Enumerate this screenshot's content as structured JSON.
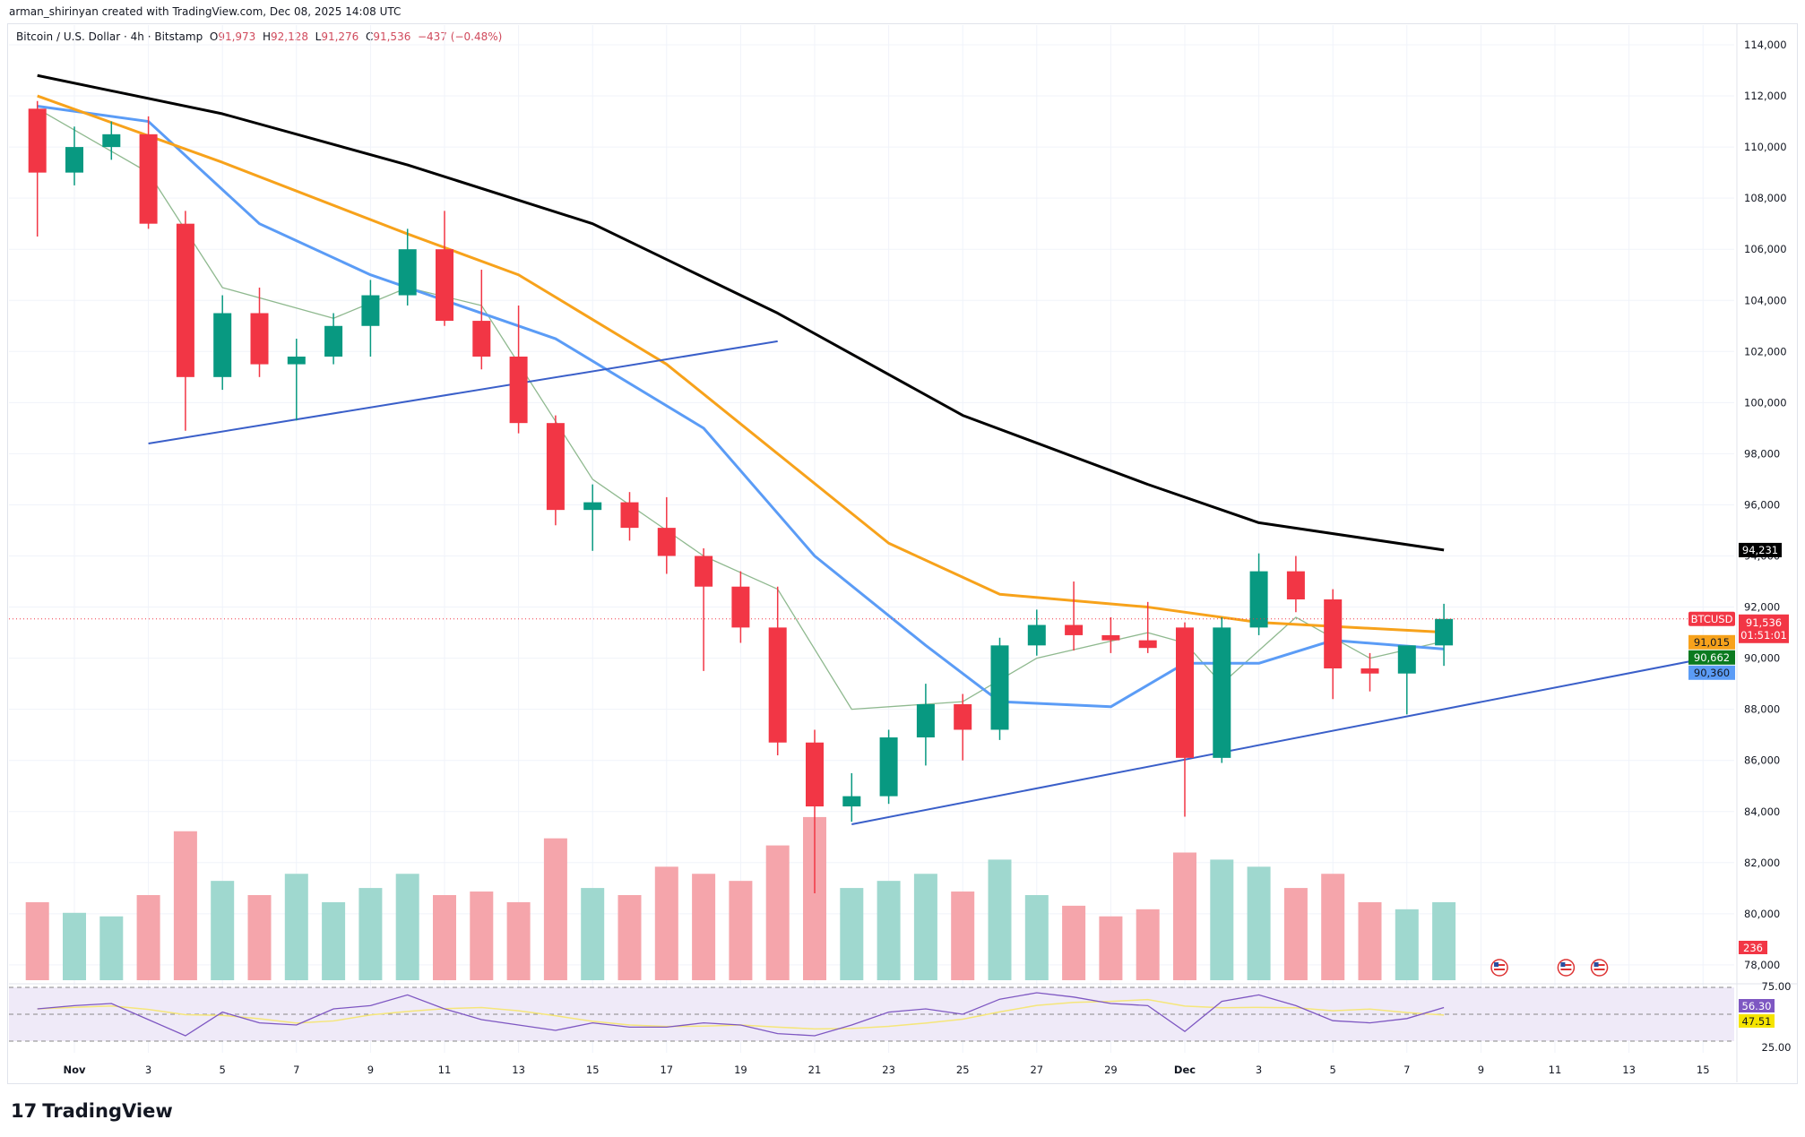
{
  "credit": "arman_shirinyan created with TradingView.com, Dec 08, 2025 14:08 UTC",
  "legend": {
    "title": "Bitcoin / U.S. Dollar · 4h · Bitstamp",
    "o_label": "O",
    "o": "91,973",
    "h_label": "H",
    "h": "92,128",
    "l_label": "L",
    "l": "91,276",
    "c_label": "C",
    "c": "91,536",
    "change": "−437 (−0.48%)"
  },
  "logo": "TradingView",
  "colors": {
    "up": "#089981",
    "down": "#f23645",
    "ma_black": "#000000",
    "ma_orange": "#f7a21b",
    "ma_blue": "#5b9cf6",
    "ma_green": "#8fb98f",
    "trend": "#3a5fc9",
    "rsi": "#7e57c2",
    "rsi_ma": "#f5e67a"
  },
  "chart_data": {
    "type": "candlestick",
    "symbol": "BTCUSD",
    "price_ticks": [
      "114,000",
      "112,000",
      "110,000",
      "108,000",
      "106,000",
      "104,000",
      "102,000",
      "100,000",
      "98,000",
      "96,000",
      "94,000",
      "92,000",
      "90,000",
      "88,000",
      "86,000",
      "84,000",
      "82,000",
      "80,000",
      "78,000"
    ],
    "ylim": [
      78000,
      114000
    ],
    "date_ticks": [
      {
        "d": 1,
        "t": "Nov"
      },
      {
        "d": 3,
        "t": "3"
      },
      {
        "d": 5,
        "t": "5"
      },
      {
        "d": 7,
        "t": "7"
      },
      {
        "d": 9,
        "t": "9"
      },
      {
        "d": 11,
        "t": "11"
      },
      {
        "d": 13,
        "t": "13"
      },
      {
        "d": 15,
        "t": "15"
      },
      {
        "d": 17,
        "t": "17"
      },
      {
        "d": 19,
        "t": "19"
      },
      {
        "d": 21,
        "t": "21"
      },
      {
        "d": 23,
        "t": "23"
      },
      {
        "d": 25,
        "t": "25"
      },
      {
        "d": 27,
        "t": "27"
      },
      {
        "d": 29,
        "t": "29"
      },
      {
        "d": 31,
        "t": "Dec"
      },
      {
        "d": 33,
        "t": "3"
      },
      {
        "d": 35,
        "t": "5"
      },
      {
        "d": 37,
        "t": "7"
      },
      {
        "d": 39,
        "t": "9"
      },
      {
        "d": 41,
        "t": "11"
      },
      {
        "d": 43,
        "t": "13"
      },
      {
        "d": 45,
        "t": "15"
      }
    ],
    "candles_daily_ohlc": [
      [
        0,
        111500,
        111800,
        106500,
        109000
      ],
      [
        1,
        109000,
        110800,
        108500,
        110000
      ],
      [
        2,
        110000,
        111000,
        109500,
        110500
      ],
      [
        3,
        110500,
        111200,
        106800,
        107000
      ],
      [
        4,
        107000,
        107500,
        98900,
        101000
      ],
      [
        5,
        101000,
        104200,
        100500,
        103500
      ],
      [
        6,
        103500,
        104500,
        101000,
        101500
      ],
      [
        7,
        101500,
        102500,
        99300,
        101800
      ],
      [
        8,
        101800,
        103500,
        101500,
        103000
      ],
      [
        9,
        103000,
        104800,
        101800,
        104200
      ],
      [
        10,
        104200,
        106800,
        103800,
        106000
      ],
      [
        11,
        106000,
        107500,
        103000,
        103200
      ],
      [
        12,
        103200,
        105200,
        101300,
        101800
      ],
      [
        13,
        101800,
        103800,
        98800,
        99200
      ],
      [
        14,
        99200,
        99500,
        95200,
        95800
      ],
      [
        15,
        95800,
        96800,
        94200,
        96100
      ],
      [
        16,
        96100,
        96500,
        94600,
        95100
      ],
      [
        17,
        95100,
        96300,
        93300,
        94000
      ],
      [
        18,
        94000,
        94300,
        89500,
        92800
      ],
      [
        19,
        92800,
        93400,
        90600,
        91200
      ],
      [
        20,
        91200,
        92800,
        86200,
        86700
      ],
      [
        21,
        86700,
        87200,
        80800,
        84200
      ],
      [
        22,
        84200,
        85500,
        83600,
        84600
      ],
      [
        23,
        84600,
        87200,
        84300,
        86900
      ],
      [
        24,
        86900,
        89000,
        85800,
        88200
      ],
      [
        25,
        88200,
        88600,
        86000,
        87200
      ],
      [
        26,
        87200,
        90800,
        86800,
        90500
      ],
      [
        27,
        90500,
        91900,
        90100,
        91300
      ],
      [
        28,
        91300,
        93000,
        90300,
        90900
      ],
      [
        29,
        90900,
        91600,
        90200,
        90700
      ],
      [
        30,
        90700,
        92200,
        90200,
        90400
      ],
      [
        31,
        91200,
        91400,
        83800,
        86100
      ],
      [
        32,
        86100,
        91600,
        85900,
        91200
      ],
      [
        33,
        91200,
        94100,
        90900,
        93400
      ],
      [
        34,
        93400,
        94000,
        91800,
        92300
      ],
      [
        35,
        92300,
        92700,
        88400,
        89600
      ],
      [
        36,
        89600,
        90200,
        88700,
        89400
      ],
      [
        37,
        89400,
        90300,
        87800,
        90500
      ],
      [
        38,
        90500,
        92128,
        89700,
        91536
      ]
    ],
    "volume_daily": [
      110,
      95,
      90,
      120,
      210,
      140,
      120,
      150,
      110,
      130,
      150,
      120,
      125,
      110,
      200,
      130,
      120,
      160,
      150,
      140,
      190,
      230,
      130,
      140,
      150,
      125,
      170,
      120,
      105,
      90,
      100,
      180,
      170,
      160,
      130,
      150,
      110,
      100,
      110
    ],
    "rsi_daily": [
      55,
      58,
      60,
      45,
      30,
      52,
      42,
      40,
      55,
      58,
      68,
      55,
      45,
      40,
      35,
      42,
      38,
      38,
      42,
      40,
      32,
      30,
      40,
      52,
      55,
      50,
      64,
      70,
      66,
      60,
      58,
      34,
      62,
      68,
      58,
      44,
      42,
      46,
      56.3
    ],
    "rsi_ticks": [
      "75.00",
      "25.00"
    ],
    "ma_black": [
      [
        0,
        112800
      ],
      [
        5,
        111300
      ],
      [
        10,
        109300
      ],
      [
        15,
        107000
      ],
      [
        20,
        103500
      ],
      [
        25,
        99500
      ],
      [
        30,
        96800
      ],
      [
        33,
        95300
      ],
      [
        38,
        94231
      ]
    ],
    "ma_orange": [
      [
        0,
        112000
      ],
      [
        5,
        109400
      ],
      [
        10,
        106600
      ],
      [
        13,
        105000
      ],
      [
        17,
        101500
      ],
      [
        20,
        98000
      ],
      [
        23,
        94500
      ],
      [
        26,
        92500
      ],
      [
        30,
        92000
      ],
      [
        33,
        91400
      ],
      [
        38,
        91015
      ]
    ],
    "ma_blue": [
      [
        0,
        111600
      ],
      [
        3,
        111000
      ],
      [
        6,
        107000
      ],
      [
        9,
        105000
      ],
      [
        11,
        104000
      ],
      [
        14,
        102500
      ],
      [
        18,
        99000
      ],
      [
        21,
        94000
      ],
      [
        24,
        90500
      ],
      [
        26,
        88300
      ],
      [
        29,
        88100
      ],
      [
        31,
        89800
      ],
      [
        33,
        89800
      ],
      [
        35,
        90700
      ],
      [
        38,
        90360
      ]
    ],
    "ma_green": [
      [
        0,
        111500
      ],
      [
        3,
        109000
      ],
      [
        5,
        104500
      ],
      [
        8,
        103300
      ],
      [
        10,
        104500
      ],
      [
        12,
        103800
      ],
      [
        15,
        97000
      ],
      [
        18,
        94000
      ],
      [
        20,
        92700
      ],
      [
        22,
        88000
      ],
      [
        25,
        88300
      ],
      [
        27,
        90000
      ],
      [
        30,
        91000
      ],
      [
        31,
        90600
      ],
      [
        32,
        89000
      ],
      [
        34,
        91600
      ],
      [
        36,
        90000
      ],
      [
        38,
        90662
      ]
    ],
    "trendlines": [
      [
        [
          3,
          98400
        ],
        [
          20,
          102400
        ]
      ],
      [
        [
          22,
          83500
        ],
        [
          45.8,
          90200
        ]
      ]
    ],
    "last_price": "91,536",
    "countdown": "01:51:01",
    "price_tags": [
      {
        "v": "94,231",
        "p": 94231,
        "bg": "#000000",
        "fg": "#ffffff"
      },
      {
        "v": "91,015",
        "p": 91015,
        "bg": "#f7a21b",
        "fg": "#131722"
      },
      {
        "v": "90,662",
        "p": 90662,
        "bg": "#0b7a1f",
        "fg": "#ffffff"
      },
      {
        "v": "90,360",
        "p": 90360,
        "bg": "#5b9cf6",
        "fg": "#131722"
      }
    ],
    "volume_tag": "236",
    "rsi_tag": "56.30",
    "rsi_ma_tag": "47.51",
    "event_flags": [
      {
        "d": 39.5,
        "icon": "us-flag-icon"
      },
      {
        "d": 41.3,
        "icon": "us-flag-icon"
      },
      {
        "d": 42.2,
        "icon": "us-flag-icon"
      }
    ]
  }
}
